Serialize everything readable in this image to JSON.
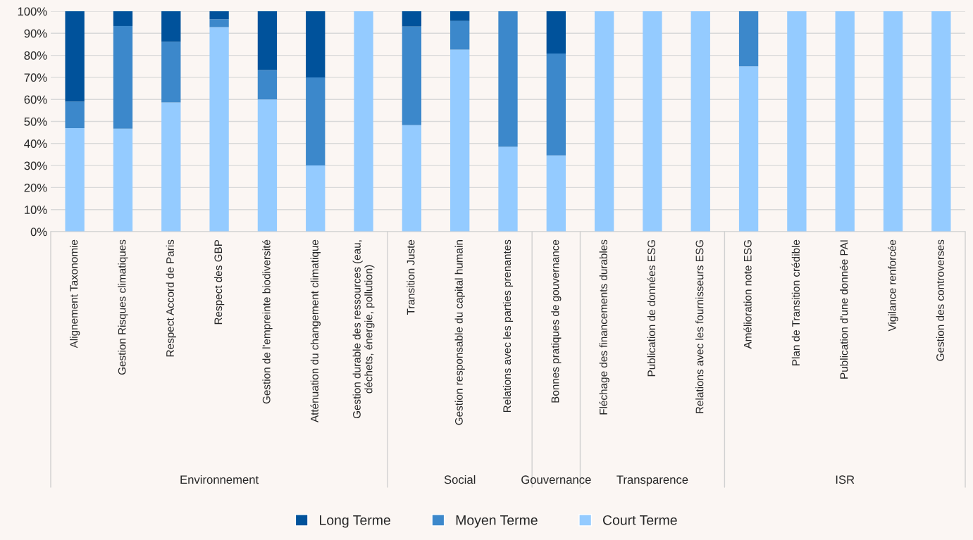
{
  "chart_data": {
    "type": "bar",
    "stacked": true,
    "categories": [
      "Alignement Taxonomie",
      "Gestion Risques climatiques",
      "Respect Accord de Paris",
      "Respect des GBP",
      "Gestion de l'empreinte biodiversité",
      "Atténuation du changement climatique",
      "Gestion durable des ressources (eau,\ndéchets, énergie, pollution)",
      "Transition Juste",
      "Gestion responsable du capital humain",
      "Relations avec les parties prenantes",
      "Bonnes pratiques de gouvernance",
      "Fléchage des financements durables",
      "Publication de données ESG",
      "Relations avec les fournisseurs ESG",
      "Amélioration note ESG",
      "Plan de Transition crédible",
      "Publication d'une donnée PAI",
      "Vigilance renforcée",
      "Gestion des controverses"
    ],
    "series": [
      {
        "name": "Court Terme",
        "color": "#94cbff",
        "values": [
          47,
          46.7,
          58.6,
          92.8,
          60,
          30,
          100,
          48.3,
          82.6,
          38.5,
          34.6,
          100,
          100,
          100,
          75,
          100,
          100,
          100,
          100
        ]
      },
      {
        "name": "Moyen Terme",
        "color": "#3c88cb",
        "values": [
          12,
          46.6,
          27.6,
          3.6,
          13.3,
          40,
          0,
          44.8,
          13,
          61.5,
          46.2,
          0,
          0,
          0,
          25,
          0,
          0,
          0,
          0
        ]
      },
      {
        "name": "Long Terme",
        "color": "#00529b",
        "values": [
          41,
          6.7,
          13.8,
          3.6,
          26.7,
          30,
          0,
          6.9,
          4.4,
          0,
          19.2,
          0,
          0,
          0,
          0,
          0,
          0,
          0,
          0
        ]
      }
    ],
    "ylim": [
      0,
      100
    ],
    "yticks": [
      {
        "value": 0,
        "label": "0%"
      },
      {
        "value": 10,
        "label": "10%"
      },
      {
        "value": 20,
        "label": "20%"
      },
      {
        "value": 30,
        "label": "30%"
      },
      {
        "value": 40,
        "label": "40%"
      },
      {
        "value": 50,
        "label": "50%"
      },
      {
        "value": 60,
        "label": "60%"
      },
      {
        "value": 70,
        "label": "70%"
      },
      {
        "value": 80,
        "label": "80%"
      },
      {
        "value": 90,
        "label": "90%"
      },
      {
        "value": 100,
        "label": "100%"
      }
    ],
    "grid": "y",
    "legend": "bottom",
    "annotations": [
      "Environnement",
      "Social",
      "Gouvernance",
      "Transparence",
      "ISR"
    ]
  }
}
